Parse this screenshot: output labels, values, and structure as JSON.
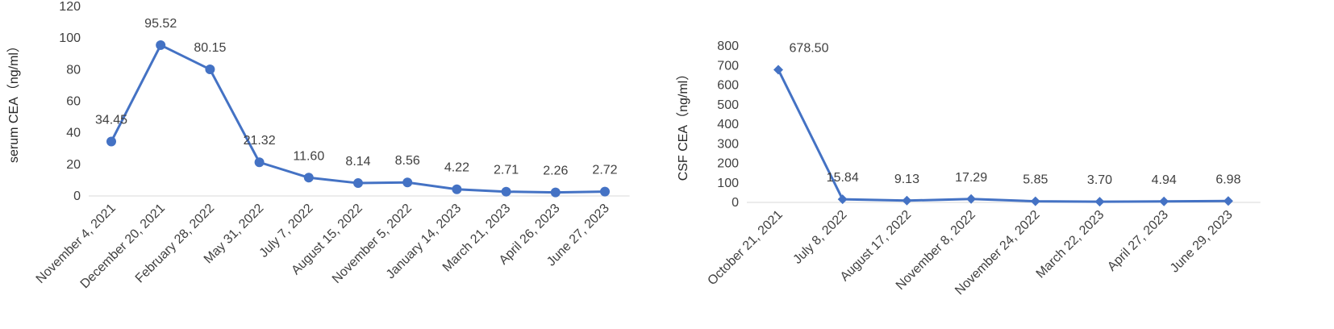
{
  "chart_data": [
    {
      "type": "line",
      "ylabel": "serum CEA（ng/ml）",
      "ylim": [
        0,
        120
      ],
      "yticks": [
        0,
        20,
        40,
        60,
        80,
        100,
        120
      ],
      "categories": [
        "November 4, 2021",
        "December 20, 2021",
        "February 28, 2022",
        "May 31, 2022",
        "July 7, 2022",
        "August 15, 2022",
        "November 5, 2022",
        "January 14, 2023",
        "March 21, 2023",
        "April 26, 2023",
        "June 27, 2023"
      ],
      "values": [
        34.45,
        95.52,
        80.15,
        21.32,
        11.6,
        8.14,
        8.56,
        4.22,
        2.71,
        2.26,
        2.72
      ],
      "data_labels": [
        "34.45",
        "95.52",
        "80.15",
        "21.32",
        "11.60",
        "8.14",
        "8.56",
        "4.22",
        "2.71",
        "2.26",
        "2.72"
      ],
      "marker": "circle",
      "color": "#4472C4",
      "grid": false
    },
    {
      "type": "line",
      "ylabel": "CSF CEA（ng/ml）",
      "ylim": [
        0,
        800
      ],
      "yticks": [
        0,
        100,
        200,
        300,
        400,
        500,
        600,
        700,
        800
      ],
      "categories": [
        "October 21, 2021",
        "July 8, 2022",
        "August 17, 2022",
        "November 8, 2022",
        "November 24, 2022",
        "March 22, 2023",
        "April 27, 2023",
        "June 29, 2023"
      ],
      "values": [
        678.5,
        15.84,
        9.13,
        17.29,
        5.85,
        3.7,
        4.94,
        6.98
      ],
      "data_labels": [
        "678.50",
        "15.84",
        "9.13",
        "17.29",
        "5.85",
        "3.70",
        "4.94",
        "6.98"
      ],
      "marker": "diamond",
      "color": "#4472C4",
      "grid": false
    }
  ]
}
